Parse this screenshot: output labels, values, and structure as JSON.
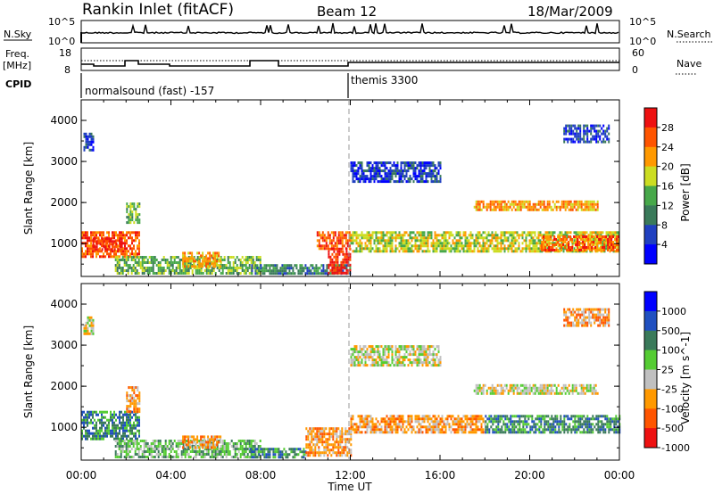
{
  "header": {
    "station": "Rankin Inlet (fitACF)",
    "beam": "Beam 12",
    "date": "18/Mar/2009"
  },
  "top_panels": {
    "nsky_label": "N.Sky",
    "nsky_ticks": [
      "10^5",
      "10^0"
    ],
    "nsearch_label": "N.Search",
    "nsearch_ticks": [
      "10^5",
      "10^0"
    ],
    "freq_label": "Freq.",
    "freq_unit": "[MHz]",
    "freq_ticks": [
      "18",
      "8"
    ],
    "nave_label": "Nave",
    "nave_ticks": [
      "60",
      "0"
    ],
    "cpid_label": "CPID",
    "cpid_segments": [
      {
        "name": "normalsound (fast) -157",
        "start_h": 0,
        "end_h": 12
      },
      {
        "name": "themis 3300",
        "start_h": 12,
        "end_h": 24
      }
    ]
  },
  "chart_data": [
    {
      "type": "heatmap",
      "title": "",
      "quantity": "Power",
      "colorbar_label": "Power [dB]",
      "colorbar_ticks": [
        "28",
        "24",
        "20",
        "16",
        "12",
        "8",
        "4"
      ],
      "colorbar_values": [
        28,
        24,
        20,
        16,
        12,
        8,
        4
      ],
      "colors": [
        "#0000ff",
        "#2040c0",
        "#3a7a5a",
        "#47a84a",
        "#ccdd22",
        "#ff9900",
        "#ff5500",
        "#ee1111"
      ],
      "ylabel": "Slant Range [km]",
      "yticks": [
        "4000",
        "3000",
        "2000",
        "1000"
      ],
      "ytick_values": [
        4000,
        3000,
        2000,
        1000
      ],
      "ylim": [
        200,
        4500
      ],
      "xlim": [
        0,
        24
      ],
      "regions": [
        {
          "t": [
            0.0,
            2.6
          ],
          "r": [
            700,
            1300
          ],
          "level": 6
        },
        {
          "t": [
            0.5,
            1.8
          ],
          "r": [
            850,
            1150
          ],
          "level": 7
        },
        {
          "t": [
            2.0,
            2.6
          ],
          "r": [
            1500,
            2000
          ],
          "level": 3
        },
        {
          "t": [
            0.1,
            0.5
          ],
          "r": [
            3300,
            3700
          ],
          "level": 1
        },
        {
          "t": [
            1.5,
            8.0
          ],
          "r": [
            300,
            700
          ],
          "level": 3
        },
        {
          "t": [
            4.5,
            6.2
          ],
          "r": [
            450,
            800
          ],
          "level": 5
        },
        {
          "t": [
            7.5,
            12.0
          ],
          "r": [
            300,
            500
          ],
          "level": 2
        },
        {
          "t": [
            11.0,
            12.0
          ],
          "r": [
            300,
            900
          ],
          "level": 7
        },
        {
          "t": [
            10.5,
            12.0
          ],
          "r": [
            900,
            1300
          ],
          "level": 6
        },
        {
          "t": [
            12.0,
            24.0
          ],
          "r": [
            800,
            1300
          ],
          "level": 4
        },
        {
          "t": [
            20.5,
            24.0
          ],
          "r": [
            850,
            1200
          ],
          "level": 6
        },
        {
          "t": [
            17.5,
            23.0
          ],
          "r": [
            1800,
            2050
          ],
          "level": 5
        },
        {
          "t": [
            12.0,
            16.0
          ],
          "r": [
            2500,
            3000
          ],
          "level": 1
        },
        {
          "t": [
            21.5,
            23.5
          ],
          "r": [
            3500,
            3900
          ],
          "level": 1
        }
      ]
    },
    {
      "type": "heatmap",
      "title": "",
      "quantity": "Velocity",
      "colorbar_label": "Velocity [m s^-1]",
      "colorbar_ticks": [
        "1000",
        "500",
        "100",
        "25",
        "-25",
        "-100",
        "-500",
        "-1000"
      ],
      "colorbar_values": [
        1000,
        500,
        100,
        25,
        -25,
        -100,
        -500,
        -1000
      ],
      "colors": [
        "#ee1111",
        "#ff5500",
        "#ff9900",
        "#c0c0c0",
        "#55cc33",
        "#3a7a5a",
        "#2050c0",
        "#0000ff"
      ],
      "ylabel": "Slant Range [km]",
      "yticks": [
        "4000",
        "3000",
        "2000",
        "1000"
      ],
      "ytick_values": [
        4000,
        3000,
        2000,
        1000
      ],
      "ylim": [
        200,
        4500
      ],
      "xlim": [
        0,
        24
      ],
      "regions": [
        {
          "t": [
            0.0,
            2.6
          ],
          "r": [
            700,
            1400
          ],
          "level": 5
        },
        {
          "t": [
            2.0,
            2.6
          ],
          "r": [
            1400,
            2000
          ],
          "level": 2
        },
        {
          "t": [
            0.1,
            0.5
          ],
          "r": [
            3300,
            3700
          ],
          "level": 3
        },
        {
          "t": [
            1.5,
            8.0
          ],
          "r": [
            300,
            700
          ],
          "level": 4
        },
        {
          "t": [
            4.5,
            6.2
          ],
          "r": [
            500,
            800
          ],
          "level": 2
        },
        {
          "t": [
            7.5,
            10.0
          ],
          "r": [
            300,
            500
          ],
          "level": 5
        },
        {
          "t": [
            10.0,
            12.0
          ],
          "r": [
            300,
            1000
          ],
          "level": 2
        },
        {
          "t": [
            12.0,
            18.0
          ],
          "r": [
            900,
            1300
          ],
          "level": 2
        },
        {
          "t": [
            18.0,
            24.0
          ],
          "r": [
            900,
            1300
          ],
          "level": 5
        },
        {
          "t": [
            17.5,
            23.0
          ],
          "r": [
            1800,
            2050
          ],
          "level": 3
        },
        {
          "t": [
            12.0,
            16.0
          ],
          "r": [
            2500,
            3000
          ],
          "level": 3
        },
        {
          "t": [
            21.5,
            23.5
          ],
          "r": [
            3500,
            3900
          ],
          "level": 2
        }
      ]
    }
  ],
  "x_axis": {
    "ticks": [
      "00:00",
      "04:00",
      "08:00",
      "12:00",
      "16:00",
      "20:00",
      "00:00"
    ],
    "tick_values": [
      0,
      4,
      8,
      12,
      16,
      20,
      24
    ],
    "label": "Time UT"
  }
}
